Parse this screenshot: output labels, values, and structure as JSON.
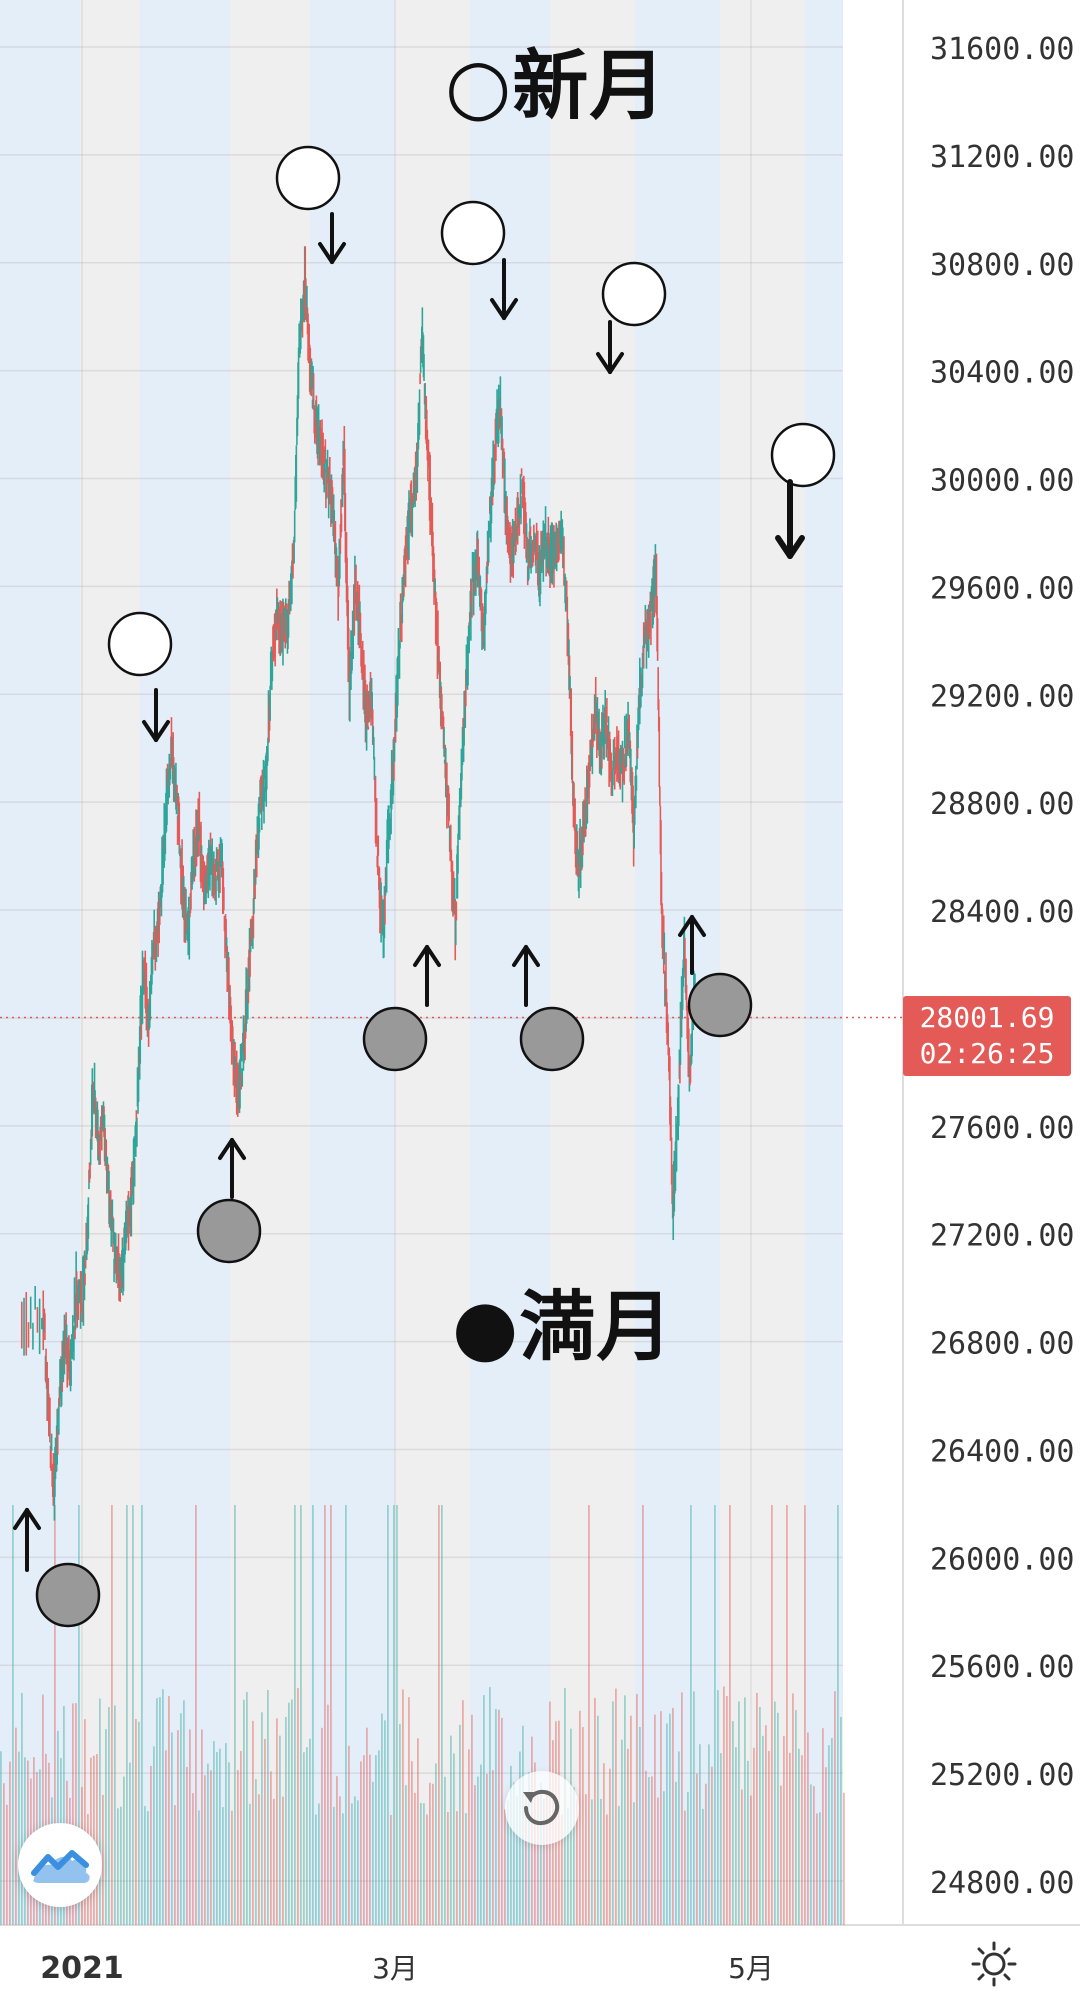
{
  "chart_data": {
    "type": "candlestick",
    "symbol_note": "",
    "y_axis": {
      "ticks": [
        31600,
        31200,
        30800,
        30400,
        30000,
        29600,
        29200,
        28800,
        28400,
        28000,
        27600,
        27200,
        26800,
        26400,
        26000,
        25600,
        25200,
        24800
      ],
      "tick_labels": [
        "31600.00",
        "31200.00",
        "30800.00",
        "30400.00",
        "30000.00",
        "29600.00",
        "29200.00",
        "28800.00",
        "28400.00",
        "27600.00",
        "27200.00",
        "26800.00",
        "26400.00",
        "26000.00",
        "25600.00",
        "25200.00",
        "24800.00"
      ],
      "range": [
        24600,
        31800
      ]
    },
    "x_axis": {
      "labels": [
        "2021",
        "3月",
        "5月"
      ],
      "range_days": [
        -11,
        138
      ]
    },
    "current_price": "28001.69",
    "countdown": "02:26:25",
    "price_path": [
      [
        -11,
        26850
      ],
      [
        -7,
        26900
      ],
      [
        -6,
        26550
      ],
      [
        -5,
        26250
      ],
      [
        -4,
        26600
      ],
      [
        -3,
        26800
      ],
      [
        -2,
        26700
      ],
      [
        -1,
        27000
      ],
      [
        0,
        26950
      ],
      [
        1,
        27200
      ],
      [
        2,
        27750
      ],
      [
        3,
        27550
      ],
      [
        4,
        27600
      ],
      [
        5,
        27300
      ],
      [
        6,
        27100
      ],
      [
        7,
        27050
      ],
      [
        8,
        27200
      ],
      [
        9,
        27350
      ],
      [
        10,
        27700
      ],
      [
        11,
        28200
      ],
      [
        12,
        28000
      ],
      [
        13,
        28300
      ],
      [
        14,
        28400
      ],
      [
        15,
        28750
      ],
      [
        16,
        29000
      ],
      [
        17,
        28800
      ],
      [
        18,
        28500
      ],
      [
        19,
        28300
      ],
      [
        20,
        28600
      ],
      [
        21,
        28700
      ],
      [
        22,
        28450
      ],
      [
        23,
        28600
      ],
      [
        24,
        28500
      ],
      [
        25,
        28600
      ],
      [
        26,
        28200
      ],
      [
        27,
        27900
      ],
      [
        28,
        27700
      ],
      [
        29,
        27900
      ],
      [
        30,
        28200
      ],
      [
        31,
        28500
      ],
      [
        32,
        28800
      ],
      [
        33,
        28900
      ],
      [
        34,
        29300
      ],
      [
        35,
        29500
      ],
      [
        36,
        29400
      ],
      [
        37,
        29500
      ],
      [
        38,
        29700
      ],
      [
        39,
        30500
      ],
      [
        40,
        30750
      ],
      [
        41,
        30400
      ],
      [
        42,
        30200
      ],
      [
        43,
        30100
      ],
      [
        44,
        30000
      ],
      [
        45,
        29900
      ],
      [
        46,
        29600
      ],
      [
        47,
        30100
      ],
      [
        48,
        29200
      ],
      [
        49,
        29600
      ],
      [
        50,
        29400
      ],
      [
        51,
        29100
      ],
      [
        52,
        29200
      ],
      [
        53,
        28600
      ],
      [
        54,
        28300
      ],
      [
        55,
        28700
      ],
      [
        56,
        29000
      ],
      [
        57,
        29400
      ],
      [
        58,
        29700
      ],
      [
        59,
        29900
      ],
      [
        60,
        30000
      ],
      [
        61,
        30550
      ],
      [
        62,
        30100
      ],
      [
        63,
        29700
      ],
      [
        64,
        29300
      ],
      [
        65,
        29000
      ],
      [
        66,
        28650
      ],
      [
        67,
        28350
      ],
      [
        68,
        28900
      ],
      [
        69,
        29300
      ],
      [
        70,
        29600
      ],
      [
        71,
        29700
      ],
      [
        72,
        29400
      ],
      [
        73,
        29800
      ],
      [
        74,
        30100
      ],
      [
        75,
        30300
      ],
      [
        76,
        29900
      ],
      [
        77,
        29700
      ],
      [
        78,
        29800
      ],
      [
        79,
        30000
      ],
      [
        80,
        29700
      ],
      [
        81,
        29750
      ],
      [
        82,
        29650
      ],
      [
        83,
        29800
      ],
      [
        84,
        29700
      ],
      [
        85,
        29750
      ],
      [
        86,
        29800
      ],
      [
        87,
        29500
      ],
      [
        88,
        28900
      ],
      [
        89,
        28550
      ],
      [
        90,
        28700
      ],
      [
        91,
        28900
      ],
      [
        92,
        29150
      ],
      [
        93,
        29000
      ],
      [
        94,
        29100
      ],
      [
        95,
        28900
      ],
      [
        96,
        29000
      ],
      [
        97,
        28900
      ],
      [
        98,
        29100
      ],
      [
        99,
        28700
      ],
      [
        100,
        29200
      ],
      [
        101,
        29400
      ],
      [
        102,
        29500
      ],
      [
        103,
        29650
      ],
      [
        104,
        28400
      ],
      [
        105,
        28000
      ],
      [
        106,
        27300
      ],
      [
        107,
        27700
      ],
      [
        108,
        28300
      ],
      [
        109,
        27800
      ],
      [
        110,
        28100
      ]
    ],
    "volume_style": "red/green bars along bottom"
  },
  "annotations": {
    "new_moon_label": "○新月",
    "full_moon_label": "●満月"
  },
  "icons": {
    "logo": "tradingview-cloud-icon",
    "reset": "reset-icon",
    "settings": "sun-settings-icon"
  }
}
